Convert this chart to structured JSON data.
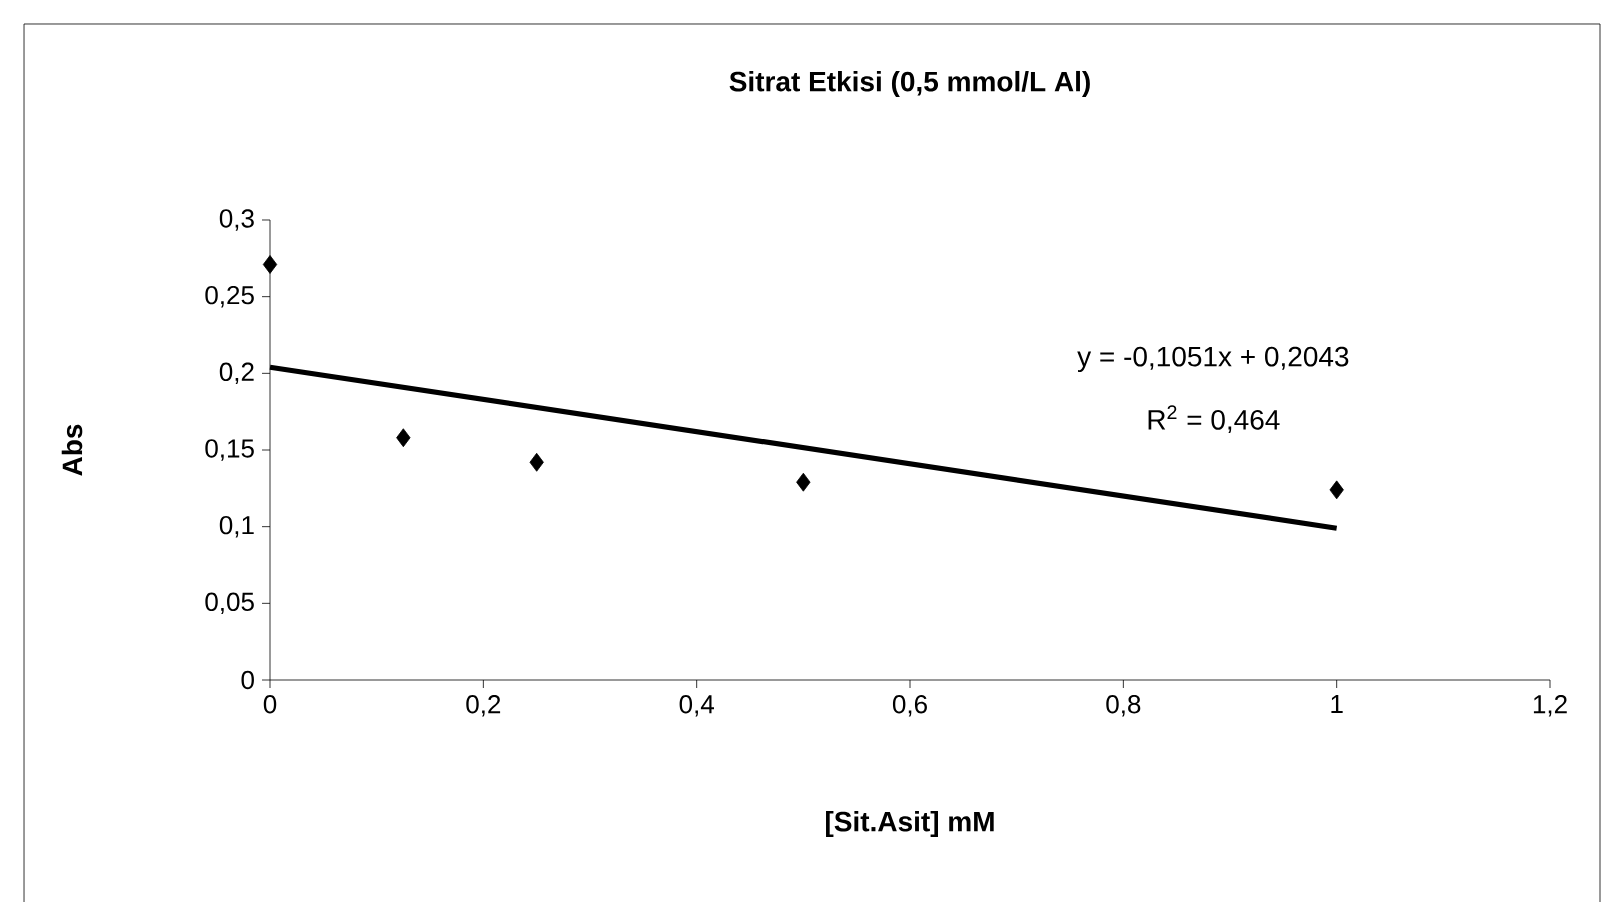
{
  "chart_data": {
    "type": "scatter",
    "title": "Sitrat Etkisi (0,5 mmol/L Al)",
    "xlabel": "[Sit.Asit] mM",
    "ylabel": "Abs",
    "series": [
      {
        "color": "#000000",
        "marker": "diamond",
        "x": [
          0,
          0.125,
          0.25,
          0.5,
          1
        ],
        "values": [
          0.271,
          0.158,
          0.142,
          0.129,
          0.124
        ]
      },
      {
        "type": "line",
        "color": "#000000",
        "marker": "none",
        "line_style": "solid",
        "x": [
          0,
          1
        ],
        "values": [
          0.204,
          0.099
        ]
      }
    ],
    "annotations": [
      "y = -0,1051x + 0,2043",
      "R$^{2}$ = 0,464"
    ],
    "xlim": [
      0,
      1.2
    ],
    "ylim": [
      0,
      0.3
    ],
    "xticks": [
      0,
      {
        "value": 0.2,
        "label": "0,2"
      },
      {
        "value": 0.4,
        "label": "0,4"
      },
      {
        "value": 0.6,
        "label": "0,6"
      },
      {
        "value": 0.8,
        "label": "0,8"
      },
      1,
      {
        "value": 1.2,
        "label": "1,2"
      }
    ],
    "yticks": [
      0,
      {
        "value": 0.05,
        "label": "0,05"
      },
      {
        "value": 0.1,
        "label": "0,1"
      },
      {
        "value": 0.15,
        "label": "0,15"
      },
      {
        "value": 0.2,
        "label": "0,2"
      },
      {
        "value": 0.25,
        "label": "0,25"
      },
      {
        "value": 0.3,
        "label": "0,3"
      }
    ],
    "grid": false
  }
}
